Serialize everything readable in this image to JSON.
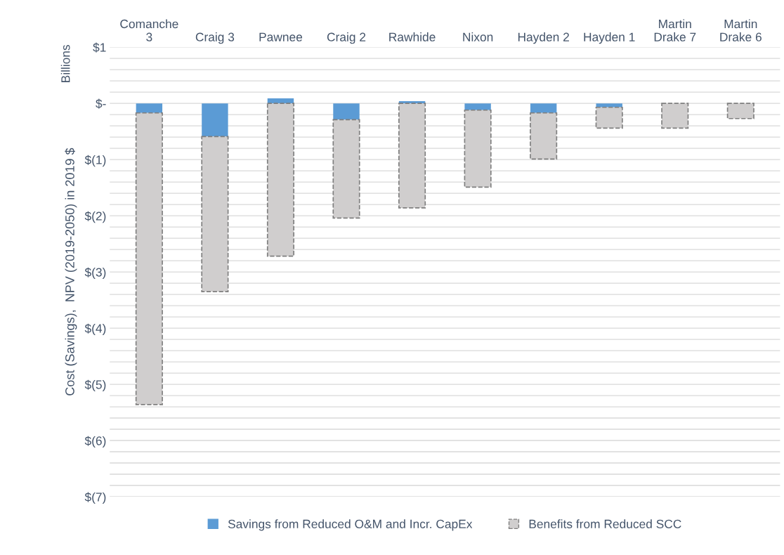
{
  "chart_data": {
    "type": "bar",
    "stacked": true,
    "ylabel": "Cost (Savings),  NPV (2019-2050) in 2019 $",
    "annotations": [
      "Billions"
    ],
    "categories": [
      "Comanche\n3",
      "Craig 3",
      "Pawnee",
      "Craig 2",
      "Rawhide",
      "Nixon",
      "Hayden 2",
      "Hayden 1",
      "Martin\nDrake 7",
      "Martin\nDrake 6"
    ],
    "series": [
      {
        "name": "Savings from Reduced O&M and Incr. CapEx",
        "color": "#5b9bd5",
        "values": [
          -0.17,
          -0.59,
          0.09,
          -0.29,
          0.04,
          -0.12,
          -0.17,
          -0.07,
          0,
          0
        ]
      },
      {
        "name": "Benefits from Reduced SCC",
        "color": "#d0cece",
        "line_style": "dashed",
        "values": [
          -5.19,
          -2.76,
          -2.72,
          -1.75,
          -1.86,
          -1.37,
          -0.82,
          -0.37,
          -0.44,
          -0.27
        ]
      }
    ],
    "ylim": [
      -7,
      1
    ],
    "yticks": [
      {
        "value": 1,
        "label": "$1"
      },
      {
        "value": 0.8,
        "label": null
      },
      {
        "value": 0.6,
        "label": null
      },
      {
        "value": 0.4,
        "label": null
      },
      {
        "value": 0.2,
        "label": null
      },
      {
        "value": 0,
        "label": "$-"
      },
      {
        "value": -0.2,
        "label": null
      },
      {
        "value": -0.4,
        "label": null
      },
      {
        "value": -0.6,
        "label": null
      },
      {
        "value": -0.8,
        "label": null
      },
      {
        "value": -1,
        "label": "$(1)"
      },
      {
        "value": -1.2,
        "label": null
      },
      {
        "value": -1.4,
        "label": null
      },
      {
        "value": -1.6,
        "label": null
      },
      {
        "value": -1.8,
        "label": null
      },
      {
        "value": -2,
        "label": "$(2)"
      },
      {
        "value": -2.2,
        "label": null
      },
      {
        "value": -2.4,
        "label": null
      },
      {
        "value": -2.6,
        "label": null
      },
      {
        "value": -2.8,
        "label": null
      },
      {
        "value": -3,
        "label": "$(3)"
      },
      {
        "value": -3.2,
        "label": null
      },
      {
        "value": -3.4,
        "label": null
      },
      {
        "value": -3.6,
        "label": null
      },
      {
        "value": -3.8,
        "label": null
      },
      {
        "value": -4,
        "label": "$(4)"
      },
      {
        "value": -4.2,
        "label": null
      },
      {
        "value": -4.4,
        "label": null
      },
      {
        "value": -4.6,
        "label": null
      },
      {
        "value": -4.8,
        "label": null
      },
      {
        "value": -5,
        "label": "$(5)"
      },
      {
        "value": -5.2,
        "label": null
      },
      {
        "value": -5.4,
        "label": null
      },
      {
        "value": -5.6,
        "label": null
      },
      {
        "value": -5.8,
        "label": null
      },
      {
        "value": -6,
        "label": "$(6)"
      },
      {
        "value": -6.2,
        "label": null
      },
      {
        "value": -6.4,
        "label": null
      },
      {
        "value": -6.6,
        "label": null
      },
      {
        "value": -6.8,
        "label": null
      },
      {
        "value": -7,
        "label": "$(7)"
      }
    ],
    "grid": "y",
    "legend": "bottom"
  }
}
